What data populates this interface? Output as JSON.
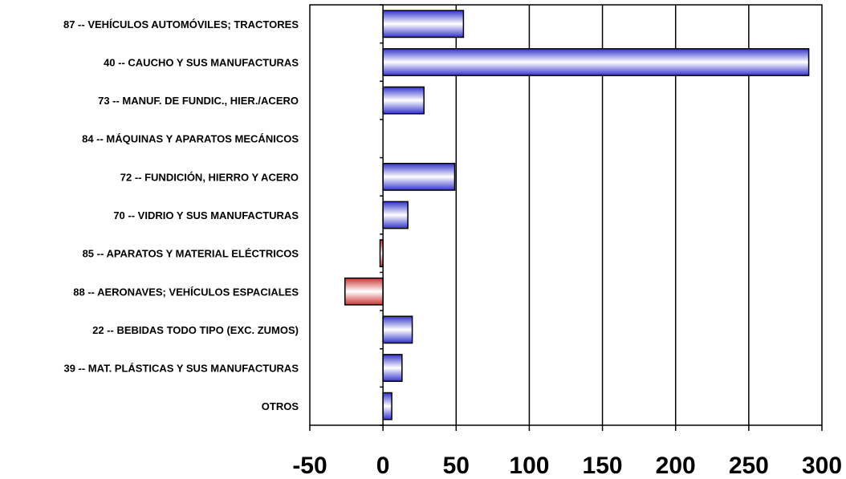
{
  "chart_data": {
    "type": "bar",
    "orientation": "horizontal",
    "categories": [
      "87 -- VEHÍCULOS AUTOMÓVILES; TRACTORES",
      "40 -- CAUCHO Y SUS MANUFACTURAS",
      "73 -- MANUF. DE FUNDIC., HIER./ACERO",
      "84 -- MÁQUINAS Y APARATOS MECÁNICOS",
      "72 -- FUNDICIÓN, HIERRO Y ACERO",
      "70 -- VIDRIO Y SUS MANUFACTURAS",
      "85 -- APARATOS Y MATERIAL ELÉCTRICOS",
      "88 -- AERONAVES; VEHÍCULOS ESPACIALES",
      "22 -- BEBIDAS TODO TIPO (EXC. ZUMOS)",
      "39 -- MAT. PLÁSTICAS Y SUS MANUFACTURAS",
      "OTROS"
    ],
    "values": [
      55,
      291,
      28,
      0,
      49,
      17,
      -2,
      -26,
      20,
      13,
      6
    ],
    "xlim": [
      -50,
      300
    ],
    "xticks": [
      "-50",
      "0",
      "50",
      "100",
      "150",
      "200",
      "250",
      "300"
    ],
    "grid": "vertical",
    "title": "",
    "xlabel": "",
    "ylabel": "",
    "colors": {
      "positive": "#3333cc",
      "negative": "#cc3333",
      "axis": "#000000"
    }
  }
}
